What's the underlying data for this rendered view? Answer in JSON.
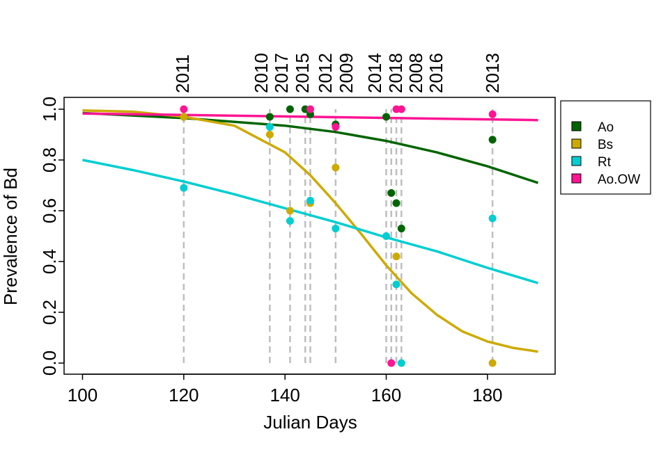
{
  "chart_data": {
    "type": "scatter",
    "xlabel": "Julian Days",
    "ylabel": "Prevalence of Bd",
    "xlim": [
      100,
      190
    ],
    "ylim": [
      0,
      1
    ],
    "x_ticks": [
      100,
      120,
      140,
      160,
      180
    ],
    "y_ticks": [
      0.0,
      0.2,
      0.4,
      0.6,
      0.8,
      1.0
    ],
    "y_tick_labels": [
      "0.0",
      "0.2",
      "0.4",
      "0.6",
      "0.8",
      "1.0"
    ],
    "grid": false,
    "legend_position": "right",
    "year_annotations": [
      {
        "x": 120,
        "label": "2011"
      },
      {
        "x": 137,
        "label": "2010"
      },
      {
        "x": 141,
        "label": "2017"
      },
      {
        "x": 145,
        "label": "2015"
      },
      {
        "x": 150,
        "label": "2012"
      },
      {
        "x": 150.1,
        "label": "2009"
      },
      {
        "x": 160,
        "label": "2014"
      },
      {
        "x": 162,
        "label": "2018"
      },
      {
        "x": 163,
        "label": "2008"
      },
      {
        "x": 163.1,
        "label": "2016"
      },
      {
        "x": 181,
        "label": "2013"
      }
    ],
    "sampling_days": [
      120,
      137,
      141,
      144,
      145,
      150,
      160,
      161,
      162,
      163,
      181
    ],
    "series": [
      {
        "name": "Ao",
        "color": "#006400",
        "points": [
          {
            "x": 120,
            "y": 0.97
          },
          {
            "x": 137,
            "y": 0.97
          },
          {
            "x": 141,
            "y": 1.0
          },
          {
            "x": 144,
            "y": 1.0
          },
          {
            "x": 145,
            "y": 0.98
          },
          {
            "x": 150,
            "y": 0.94
          },
          {
            "x": 160,
            "y": 0.97
          },
          {
            "x": 161,
            "y": 0.67
          },
          {
            "x": 162,
            "y": 0.63
          },
          {
            "x": 163,
            "y": 0.53
          },
          {
            "x": 181,
            "y": 0.88
          }
        ],
        "curve": [
          {
            "x": 100,
            "y": 0.985
          },
          {
            "x": 120,
            "y": 0.965
          },
          {
            "x": 140,
            "y": 0.935
          },
          {
            "x": 150,
            "y": 0.91
          },
          {
            "x": 160,
            "y": 0.875
          },
          {
            "x": 170,
            "y": 0.83
          },
          {
            "x": 180,
            "y": 0.775
          },
          {
            "x": 190,
            "y": 0.71
          }
        ]
      },
      {
        "name": "Bs",
        "color": "#CDAA00",
        "points": [
          {
            "x": 120,
            "y": 0.97
          },
          {
            "x": 137,
            "y": 0.9
          },
          {
            "x": 141,
            "y": 0.6
          },
          {
            "x": 145,
            "y": 0.63
          },
          {
            "x": 150,
            "y": 0.77
          },
          {
            "x": 162,
            "y": 0.42
          },
          {
            "x": 181,
            "y": 0.0
          }
        ],
        "curve": [
          {
            "x": 100,
            "y": 0.995
          },
          {
            "x": 110,
            "y": 0.99
          },
          {
            "x": 120,
            "y": 0.97
          },
          {
            "x": 130,
            "y": 0.935
          },
          {
            "x": 140,
            "y": 0.83
          },
          {
            "x": 145,
            "y": 0.74
          },
          {
            "x": 150,
            "y": 0.63
          },
          {
            "x": 155,
            "y": 0.51
          },
          {
            "x": 160,
            "y": 0.385
          },
          {
            "x": 165,
            "y": 0.275
          },
          {
            "x": 170,
            "y": 0.19
          },
          {
            "x": 175,
            "y": 0.125
          },
          {
            "x": 180,
            "y": 0.085
          },
          {
            "x": 185,
            "y": 0.06
          },
          {
            "x": 190,
            "y": 0.045
          }
        ]
      },
      {
        "name": "Rt",
        "color": "#00CED1",
        "points": [
          {
            "x": 120,
            "y": 0.69
          },
          {
            "x": 137,
            "y": 0.93
          },
          {
            "x": 141,
            "y": 0.56
          },
          {
            "x": 145,
            "y": 0.64
          },
          {
            "x": 150,
            "y": 0.53
          },
          {
            "x": 160,
            "y": 0.5
          },
          {
            "x": 162,
            "y": 0.31
          },
          {
            "x": 163,
            "y": 0.0
          },
          {
            "x": 181,
            "y": 0.57
          }
        ],
        "curve": [
          {
            "x": 100,
            "y": 0.8
          },
          {
            "x": 110,
            "y": 0.76
          },
          {
            "x": 120,
            "y": 0.715
          },
          {
            "x": 130,
            "y": 0.665
          },
          {
            "x": 140,
            "y": 0.61
          },
          {
            "x": 150,
            "y": 0.555
          },
          {
            "x": 160,
            "y": 0.495
          },
          {
            "x": 170,
            "y": 0.44
          },
          {
            "x": 180,
            "y": 0.375
          },
          {
            "x": 190,
            "y": 0.315
          }
        ]
      },
      {
        "name": "Ao.OW",
        "color": "#FF1493",
        "points": [
          {
            "x": 120,
            "y": 1.0
          },
          {
            "x": 145,
            "y": 1.0
          },
          {
            "x": 150,
            "y": 0.93
          },
          {
            "x": 161,
            "y": 0.0
          },
          {
            "x": 162,
            "y": 1.0
          },
          {
            "x": 163,
            "y": 1.0
          },
          {
            "x": 181,
            "y": 0.98
          }
        ],
        "curve": [
          {
            "x": 100,
            "y": 0.983
          },
          {
            "x": 190,
            "y": 0.957
          }
        ]
      }
    ]
  }
}
